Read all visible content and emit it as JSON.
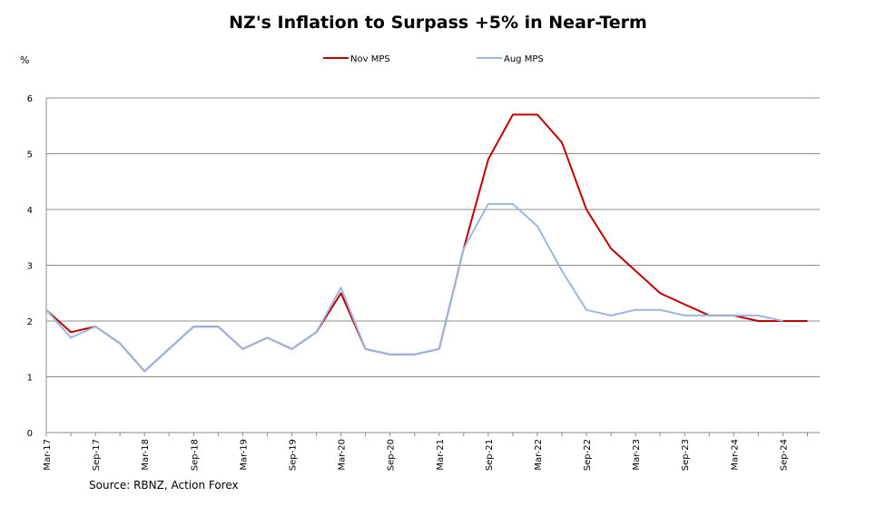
{
  "chart_data": {
    "type": "line",
    "title": "NZ's Inflation to Surpass +5% in Near-Term",
    "ylabel": "%",
    "source": "Source: RBNZ, Action Forex",
    "ylim": [
      0,
      6
    ],
    "yticks": [
      0,
      1,
      2,
      3,
      4,
      5,
      6
    ],
    "grid": true,
    "legend_position": "top-center",
    "categories": [
      "Mar-17",
      "Jun-17",
      "Sep-17",
      "Dec-17",
      "Mar-18",
      "Jun-18",
      "Sep-18",
      "Dec-18",
      "Mar-19",
      "Jun-19",
      "Sep-19",
      "Dec-19",
      "Mar-20",
      "Jun-20",
      "Sep-20",
      "Dec-20",
      "Mar-21",
      "Jun-21",
      "Sep-21",
      "Dec-21",
      "Mar-22",
      "Jun-22",
      "Sep-22",
      "Dec-22",
      "Mar-23",
      "Jun-23",
      "Sep-23",
      "Dec-23",
      "Mar-24",
      "Jun-24",
      "Sep-24",
      "Dec-24"
    ],
    "xtick_labels": [
      "Mar-17",
      "Sep-17",
      "Mar-18",
      "Sep-18",
      "Mar-19",
      "Sep-19",
      "Mar-20",
      "Sep-20",
      "Mar-21",
      "Sep-21",
      "Mar-22",
      "Sep-22",
      "Mar-23",
      "Sep-23",
      "Mar-24",
      "Sep-24"
    ],
    "series": [
      {
        "name": "Nov MPS",
        "color": "#c00000",
        "values": [
          2.2,
          1.8,
          1.9,
          1.6,
          1.1,
          1.5,
          1.9,
          1.9,
          1.5,
          1.7,
          1.5,
          1.8,
          2.5,
          1.5,
          1.4,
          1.4,
          1.5,
          3.3,
          4.9,
          5.7,
          5.7,
          5.2,
          4.0,
          3.3,
          2.9,
          2.5,
          2.3,
          2.1,
          2.1,
          2.0,
          2.0,
          2.0
        ]
      },
      {
        "name": "Aug MPS",
        "color": "#9ab7e0",
        "values": [
          2.2,
          1.7,
          1.9,
          1.6,
          1.1,
          1.5,
          1.9,
          1.9,
          1.5,
          1.7,
          1.5,
          1.8,
          2.6,
          1.5,
          1.4,
          1.4,
          1.5,
          3.3,
          4.1,
          4.1,
          3.7,
          2.9,
          2.2,
          2.1,
          2.2,
          2.2,
          2.1,
          2.1,
          2.1,
          2.1,
          2.0,
          null
        ]
      }
    ]
  }
}
